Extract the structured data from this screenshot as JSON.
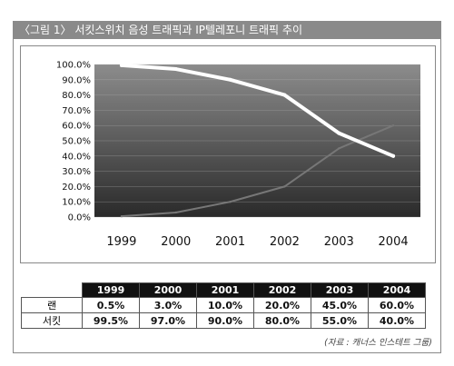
{
  "header": {
    "title": "〈그림 1〉 서킷스위치 음성 트래픽과 IP텔레포니 트래픽 추이"
  },
  "chart_data": {
    "type": "line",
    "title": "",
    "categories": [
      "1999",
      "2000",
      "2001",
      "2002",
      "2003",
      "2004"
    ],
    "ylim": [
      0,
      100
    ],
    "y_tick_labels": [
      "0.0%",
      "10.0%",
      "20.0%",
      "30.0%",
      "40.0%",
      "50.0%",
      "60.0%",
      "70.0%",
      "80.0%",
      "90.0%",
      "100.0%"
    ],
    "grid": true,
    "legend": "none",
    "series": [
      {
        "name": "랜",
        "values": [
          0.5,
          3.0,
          10.0,
          20.0,
          45.0,
          60.0
        ],
        "color": "#777777"
      },
      {
        "name": "서킷",
        "values": [
          99.5,
          97.0,
          90.0,
          80.0,
          55.0,
          40.0
        ],
        "color": "#ffffff"
      }
    ]
  },
  "table": {
    "headers": [
      "1999",
      "2000",
      "2001",
      "2002",
      "2003",
      "2004"
    ],
    "rows": [
      {
        "label": "랜",
        "values": [
          "0.5%",
          "3.0%",
          "10.0%",
          "20.0%",
          "45.0%",
          "60.0%"
        ]
      },
      {
        "label": "서킷",
        "values": [
          "99.5%",
          "97.0%",
          "90.0%",
          "80.0%",
          "55.0%",
          "40.0%"
        ]
      }
    ]
  },
  "source": "(자료 : 캐너스 인스테트 그룹)"
}
